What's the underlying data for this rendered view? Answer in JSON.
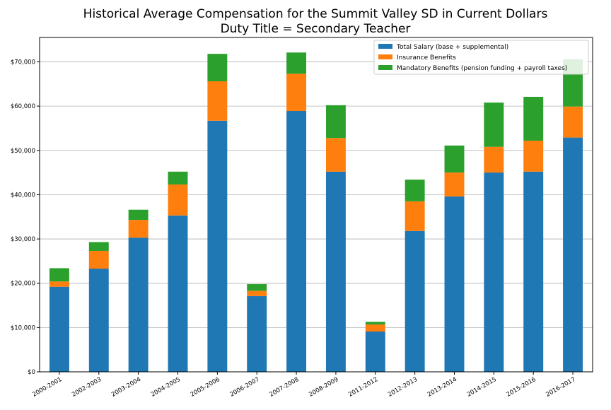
{
  "chart_data": {
    "type": "bar",
    "stacked": true,
    "title_line1": "Historical Average Compensation for the Summit Valley SD in Current Dollars",
    "title_line2": "Duty Title = Secondary Teacher",
    "xlabel": "",
    "ylabel": "",
    "categories": [
      "2000-2001",
      "2002-2003",
      "2003-2004",
      "2004-2005",
      "2005-2006",
      "2006-2007",
      "2007-2008",
      "2008-2009",
      "2011-2012",
      "2012-2013",
      "2013-2014",
      "2014-2015",
      "2015-2016",
      "2016-2017"
    ],
    "series": [
      {
        "name": "Total Salary (base + supplemental)",
        "color": "#1f77b4",
        "values": [
          19200,
          23300,
          30300,
          35300,
          56700,
          17100,
          58900,
          45200,
          9100,
          31800,
          39600,
          45000,
          45200,
          52900
        ]
      },
      {
        "name": "Insurance Benefits",
        "color": "#ff7f0e",
        "values": [
          1200,
          4000,
          4000,
          7000,
          8900,
          1200,
          8400,
          7600,
          1600,
          6700,
          5400,
          5800,
          7000,
          7000
        ]
      },
      {
        "name": "Mandatory Benefits (pension funding + payroll taxes)",
        "color": "#2ca02c",
        "values": [
          3000,
          2000,
          2300,
          2900,
          6200,
          1500,
          4800,
          7400,
          600,
          4900,
          6100,
          10000,
          9900,
          10700
        ]
      }
    ],
    "ylim": [
      0,
      75500
    ],
    "yticks": [
      0,
      10000,
      20000,
      30000,
      40000,
      50000,
      60000,
      70000
    ],
    "ytick_labels": [
      "$0",
      "$10,000",
      "$20,000",
      "$30,000",
      "$40,000",
      "$50,000",
      "$60,000",
      "$70,000"
    ],
    "grid": "horizontal",
    "legend_position": "top-right"
  }
}
